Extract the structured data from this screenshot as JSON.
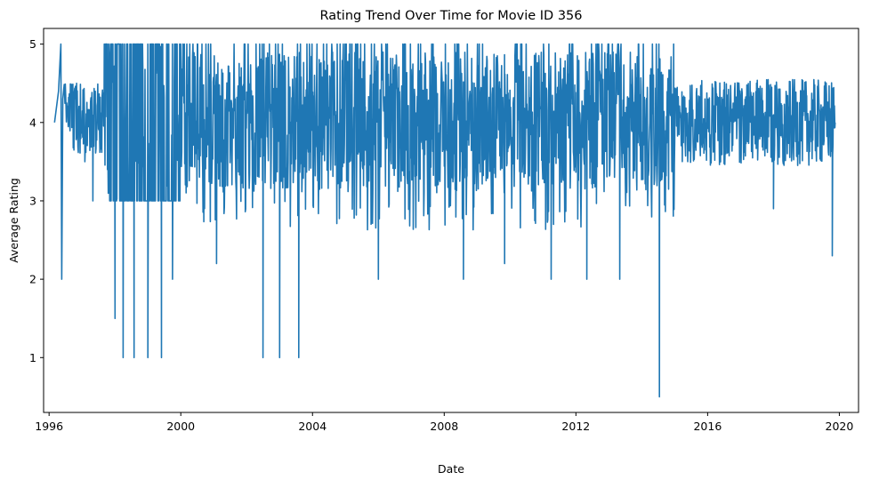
{
  "chart_data": {
    "type": "line",
    "title": "Rating Trend Over Time for Movie ID 356",
    "xlabel": "Date",
    "ylabel": "Average Rating",
    "xlim": [
      "1995-11-01",
      "2020-08-01"
    ],
    "ylim": [
      0.3,
      5.2
    ],
    "x_ticks": [
      "1996",
      "2000",
      "2004",
      "2008",
      "2012",
      "2016",
      "2020"
    ],
    "y_ticks": [
      "1",
      "2",
      "3",
      "4",
      "5"
    ],
    "grid": false,
    "legend": "none",
    "line_color": "#1f77b4",
    "series": [
      {
        "values_note": "daily average rating, approximate reading from the plot",
        "points": [
          [
            "1996-03-01",
            4.0
          ],
          [
            "1996-04-15",
            4.4
          ],
          [
            "1996-05-10",
            5.0
          ],
          [
            "1996-05-20",
            2.0
          ],
          [
            "1996-06-01",
            4.3
          ],
          [
            "1996-08-01",
            4.0
          ],
          [
            "1996-11-01",
            4.5
          ],
          [
            "1997-02-01",
            3.5
          ],
          [
            "1997-05-01",
            3.0
          ],
          [
            "1997-09-01",
            4.0
          ],
          [
            "1998-01-01",
            1.5
          ],
          [
            "1998-04-01",
            1.0
          ],
          [
            "1998-08-01",
            1.0
          ],
          [
            "1999-01-01",
            1.0
          ],
          [
            "1999-06-01",
            1.0
          ],
          [
            "1999-10-01",
            2.0
          ],
          [
            "2001-02-01",
            2.2
          ],
          [
            "2002-07-01",
            1.0
          ],
          [
            "2003-01-01",
            1.0
          ],
          [
            "2003-08-01",
            1.0
          ],
          [
            "2006-01-01",
            2.0
          ],
          [
            "2008-08-01",
            2.0
          ],
          [
            "2009-11-01",
            2.2
          ],
          [
            "2011-04-01",
            2.0
          ],
          [
            "2012-05-01",
            2.0
          ],
          [
            "2013-05-01",
            2.0
          ],
          [
            "2014-07-15",
            0.5
          ],
          [
            "2018-01-01",
            2.9
          ],
          [
            "2019-10-15",
            2.3
          ],
          [
            "2019-11-15",
            4.0
          ]
        ]
      }
    ]
  }
}
